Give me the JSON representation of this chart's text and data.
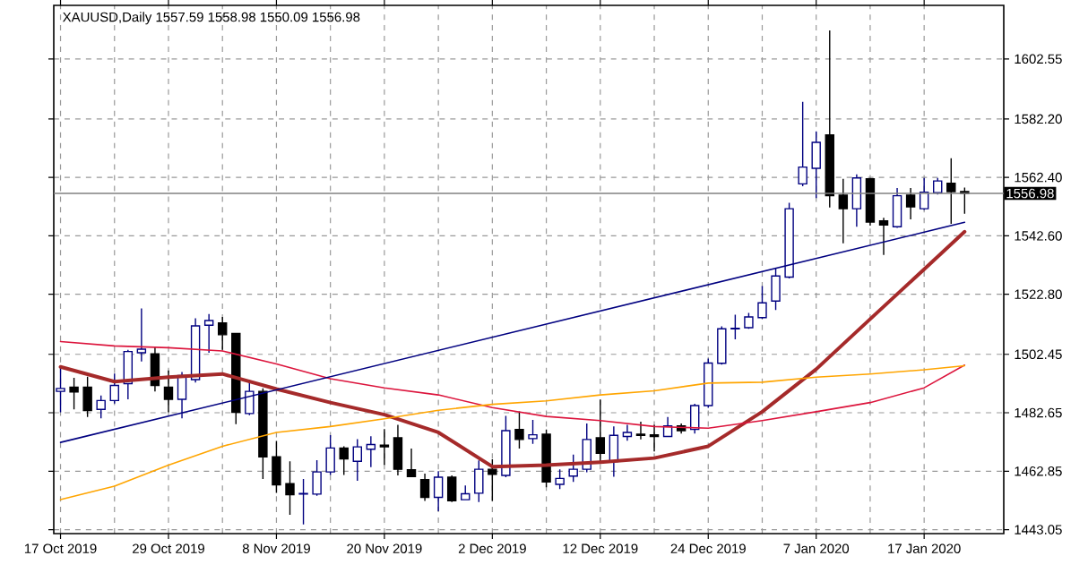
{
  "chart_data": {
    "type": "candlestick",
    "title": "XAUUSD,Daily 1557.59 1558.98 1550.09 1556.98",
    "categories": [
      "17 Oct 2019",
      null,
      null,
      null,
      null,
      null,
      null,
      null,
      "29 Oct 2019",
      null,
      null,
      null,
      null,
      null,
      null,
      null,
      "8 Nov 2019",
      null,
      null,
      null,
      null,
      null,
      null,
      null,
      "20 Nov 2019",
      null,
      null,
      null,
      null,
      null,
      null,
      null,
      "2 Dec 2019",
      null,
      null,
      null,
      null,
      null,
      null,
      null,
      "12 Dec 2019",
      null,
      null,
      null,
      null,
      null,
      null,
      null,
      "24 Dec 2019",
      null,
      null,
      null,
      null,
      null,
      null,
      null,
      "7 Jan 2020",
      null,
      null,
      null,
      null,
      null,
      null,
      null,
      "17 Jan 2020",
      null,
      null,
      null
    ],
    "ohlc": [
      [
        1489.9,
        1497.9,
        1482.8,
        1490.9
      ],
      [
        1491.3,
        1494.5,
        1483.8,
        1489.7
      ],
      [
        1491.3,
        1494.9,
        1481.2,
        1483.4
      ],
      [
        1483.8,
        1488.5,
        1480.8,
        1486.8
      ],
      [
        1486.8,
        1495.9,
        1485.8,
        1491.9
      ],
      [
        1492.5,
        1504.0,
        1487.2,
        1503.4
      ],
      [
        1503.0,
        1518.0,
        1500.0,
        1504.2
      ],
      [
        1502.6,
        1505.0,
        1489.9,
        1491.9
      ],
      [
        1491.3,
        1497.0,
        1482.8,
        1487.2
      ],
      [
        1487.2,
        1496.5,
        1480.8,
        1495.3
      ],
      [
        1493.9,
        1514.7,
        1492.9,
        1512.1
      ],
      [
        1512.3,
        1516.1,
        1503.0,
        1513.9
      ],
      [
        1513.1,
        1515.1,
        1504.0,
        1509.1
      ],
      [
        1509.5,
        1509.7,
        1478.8,
        1482.8
      ],
      [
        1482.4,
        1493.9,
        1481.8,
        1489.9
      ],
      [
        1489.9,
        1490.9,
        1460.2,
        1467.7
      ],
      [
        1467.7,
        1473.1,
        1455.5,
        1458.2
      ],
      [
        1458.6,
        1466.2,
        1448.1,
        1454.9
      ],
      [
        1455.1,
        1460.2,
        1444.8,
        1455.3
      ],
      [
        1455.1,
        1466.6,
        1454.5,
        1462.6
      ],
      [
        1462.6,
        1475.1,
        1461.6,
        1470.7
      ],
      [
        1470.7,
        1471.3,
        1461.6,
        1467.0
      ],
      [
        1466.2,
        1473.7,
        1459.6,
        1471.1
      ],
      [
        1470.3,
        1474.7,
        1464.2,
        1471.9
      ],
      [
        1471.7,
        1477.1,
        1465.0,
        1471.1
      ],
      [
        1474.2,
        1478.6,
        1461.4,
        1463.5
      ],
      [
        1463.3,
        1470.5,
        1460.8,
        1461.0
      ],
      [
        1460.0,
        1462.0,
        1452.8,
        1454.0
      ],
      [
        1454.0,
        1462.85,
        1449.3,
        1460.8
      ],
      [
        1460.8,
        1461.4,
        1452.4,
        1452.8
      ],
      [
        1453.2,
        1458.0,
        1453.0,
        1455.2
      ],
      [
        1455.4,
        1466.5,
        1452.4,
        1463.5
      ],
      [
        1463.5,
        1466.9,
        1452.8,
        1461.8
      ],
      [
        1461.4,
        1481.6,
        1460.8,
        1476.6
      ],
      [
        1477.0,
        1483.1,
        1470.5,
        1473.6
      ],
      [
        1473.9,
        1480.2,
        1472.1,
        1475.2
      ],
      [
        1475.4,
        1477.0,
        1457.4,
        1459.2
      ],
      [
        1458.4,
        1463.5,
        1456.8,
        1460.4
      ],
      [
        1461.2,
        1468.5,
        1459.2,
        1463.5
      ],
      [
        1463.5,
        1479.0,
        1462.5,
        1473.6
      ],
      [
        1474.2,
        1487.1,
        1465.5,
        1468.9
      ],
      [
        1466.1,
        1478.0,
        1461.0,
        1475.0
      ],
      [
        1474.6,
        1478.6,
        1473.2,
        1476.0
      ],
      [
        1475.4,
        1479.6,
        1473.6,
        1475.0
      ],
      [
        1475.2,
        1478.6,
        1469.5,
        1474.6
      ],
      [
        1474.6,
        1481.2,
        1474.4,
        1478.2
      ],
      [
        1478.2,
        1479.0,
        1475.6,
        1476.6
      ],
      [
        1477.0,
        1485.7,
        1475.6,
        1485.1
      ],
      [
        1485.1,
        1501.0,
        1484.3,
        1499.5
      ],
      [
        1499.4,
        1511.9,
        1499.0,
        1511.1
      ],
      [
        1511.1,
        1515.9,
        1507.5,
        1511.3
      ],
      [
        1511.5,
        1516.5,
        1511.1,
        1515.1
      ],
      [
        1514.9,
        1525.6,
        1514.5,
        1519.9
      ],
      [
        1520.5,
        1531.6,
        1517.5,
        1529.0
      ],
      [
        1528.6,
        1553.8,
        1528.2,
        1551.8
      ],
      [
        1560.2,
        1588.0,
        1559.4,
        1565.9
      ],
      [
        1565.5,
        1578.0,
        1555.4,
        1574.3
      ],
      [
        1576.8,
        1612.2,
        1552.2,
        1556.2
      ],
      [
        1556.4,
        1561.9,
        1540.1,
        1551.8
      ],
      [
        1551.8,
        1563.4,
        1545.7,
        1562.2
      ],
      [
        1561.9,
        1562.2,
        1546.1,
        1547.3
      ],
      [
        1547.7,
        1548.7,
        1536.1,
        1546.3
      ],
      [
        1545.7,
        1558.8,
        1545.3,
        1556.2
      ],
      [
        1556.4,
        1558.8,
        1548.2,
        1552.4
      ],
      [
        1551.8,
        1562.2,
        1551.4,
        1557.4
      ],
      [
        1557.2,
        1562.2,
        1556.6,
        1561.2
      ],
      [
        1560.4,
        1568.9,
        1546.7,
        1557.6
      ],
      [
        1557.59,
        1558.98,
        1550.09,
        1556.98
      ]
    ],
    "series": [
      {
        "type": "line",
        "color": "#a52a2a",
        "values": [
          1498.2,
          null,
          null,
          null,
          1493.2,
          null,
          null,
          null,
          1494.7,
          null,
          null,
          null,
          1495.8,
          null,
          null,
          null,
          1490.7,
          null,
          null,
          null,
          1486.1,
          null,
          null,
          null,
          1482.0,
          null,
          null,
          null,
          1476.0,
          null,
          null,
          null,
          1464.4,
          null,
          null,
          null,
          1464.9,
          null,
          null,
          null,
          1465.9,
          null,
          null,
          null,
          1467.3,
          null,
          null,
          null,
          1471.3,
          null,
          null,
          null,
          1483.0,
          null,
          null,
          null,
          1497.4,
          null,
          null,
          null,
          1514.4,
          null,
          null,
          null,
          1531.3,
          null,
          null,
          1544.0
        ]
      },
      {
        "type": "line",
        "color": "#dc143c",
        "values": [
          1506.8,
          null,
          null,
          null,
          1505.3,
          null,
          null,
          null,
          1504.7,
          null,
          null,
          null,
          1503.6,
          null,
          null,
          null,
          1499.2,
          null,
          null,
          null,
          1494.2,
          null,
          null,
          null,
          1491.1,
          null,
          null,
          null,
          1488.7,
          null,
          null,
          null,
          1484.4,
          null,
          null,
          null,
          1481.4,
          null,
          null,
          null,
          1480.0,
          null,
          null,
          null,
          1478.0,
          null,
          null,
          null,
          1477.4,
          null,
          null,
          null,
          1480.0,
          null,
          null,
          null,
          1483.0,
          null,
          null,
          null,
          1486.1,
          null,
          null,
          null,
          1491.1,
          null,
          null,
          1498.8
        ]
      },
      {
        "type": "line",
        "color": "#ffa500",
        "values": [
          1453.2,
          null,
          null,
          null,
          1457.8,
          null,
          null,
          null,
          1464.9,
          null,
          null,
          null,
          1471.3,
          null,
          null,
          null,
          1476.0,
          null,
          null,
          null,
          1478.0,
          null,
          null,
          null,
          1480.6,
          null,
          null,
          null,
          1483.5,
          null,
          null,
          null,
          1485.5,
          null,
          null,
          null,
          1486.7,
          null,
          null,
          null,
          1488.7,
          null,
          null,
          null,
          1490.1,
          null,
          null,
          null,
          1492.7,
          null,
          null,
          null,
          1493.0,
          null,
          null,
          null,
          1494.7,
          null,
          null,
          null,
          1495.8,
          null,
          null,
          null,
          1497.2,
          null,
          null,
          1498.6
        ]
      },
      {
        "type": "line",
        "color": "#000080",
        "values": [
          1472.6,
          null,
          null,
          null,
          null,
          null,
          null,
          null,
          null,
          null,
          null,
          null,
          null,
          null,
          null,
          null,
          null,
          null,
          null,
          null,
          null,
          null,
          null,
          null,
          null,
          null,
          null,
          null,
          null,
          null,
          null,
          null,
          null,
          null,
          null,
          null,
          null,
          null,
          null,
          null,
          null,
          null,
          null,
          null,
          null,
          null,
          null,
          null,
          null,
          null,
          null,
          null,
          null,
          null,
          null,
          null,
          null,
          null,
          null,
          null,
          null,
          null,
          null,
          null,
          null,
          null,
          null,
          1547.2
        ]
      }
    ],
    "ylim": [
      1441.7,
      1620.7
    ],
    "yticks": [
      {
        "value": 1443.05,
        "label": "1443.05"
      },
      {
        "value": 1462.85,
        "label": "1462.85"
      },
      {
        "value": 1482.65,
        "label": "1482.65"
      },
      {
        "value": 1502.45,
        "label": "1502.45"
      },
      {
        "value": 1522.8,
        "label": "1522.80"
      },
      {
        "value": 1542.6,
        "label": "1542.60"
      },
      {
        "value": 1562.4,
        "label": "1562.40"
      },
      {
        "value": 1582.2,
        "label": "1582.20"
      },
      {
        "value": 1602.55,
        "label": "1602.55"
      }
    ],
    "ref_lines": [
      {
        "axis": "y",
        "value": 1556.98,
        "label": "1556.98",
        "color": "#808080"
      }
    ],
    "grid": true
  }
}
